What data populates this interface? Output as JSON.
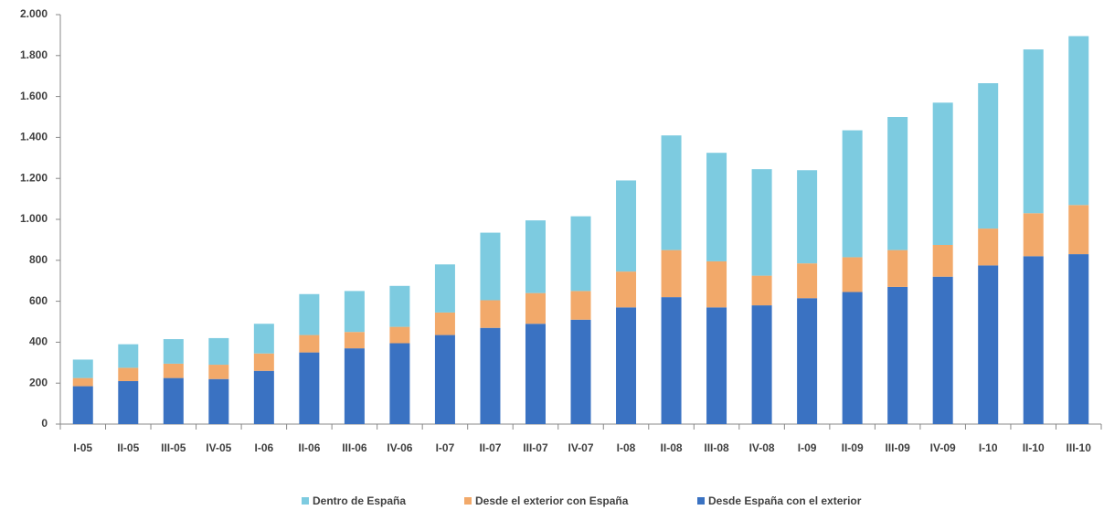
{
  "chart_data": {
    "type": "stacked_bar",
    "categories": [
      "I-05",
      "II-05",
      "III-05",
      "IV-05",
      "I-06",
      "II-06",
      "III-06",
      "IV-06",
      "I-07",
      "II-07",
      "III-07",
      "IV-07",
      "I-08",
      "II-08",
      "III-08",
      "IV-08",
      "I-09",
      "II-09",
      "III-09",
      "IV-09",
      "I-10",
      "II-10",
      "III-10"
    ],
    "series": [
      {
        "name": "Desde España con el exterior",
        "color": "#3a72c2",
        "values": [
          185,
          210,
          225,
          220,
          260,
          350,
          370,
          395,
          435,
          470,
          490,
          510,
          570,
          620,
          570,
          580,
          615,
          645,
          670,
          720,
          775,
          820,
          830
        ]
      },
      {
        "name": "Desde el exterior con España",
        "color": "#f2a96a",
        "values": [
          40,
          65,
          70,
          70,
          85,
          85,
          80,
          80,
          110,
          135,
          150,
          140,
          175,
          230,
          225,
          145,
          170,
          170,
          180,
          155,
          180,
          210,
          240
        ]
      },
      {
        "name": "Dentro de España",
        "color": "#7dcbe0",
        "values": [
          90,
          115,
          120,
          130,
          145,
          200,
          200,
          200,
          235,
          330,
          355,
          365,
          445,
          560,
          530,
          520,
          455,
          620,
          650,
          695,
          710,
          800,
          825
        ]
      }
    ],
    "ylim": [
      0,
      2000
    ],
    "yticks": [
      0,
      200,
      400,
      600,
      800,
      {
        "value": 1000,
        "label": "1.000"
      },
      {
        "value": 1200,
        "label": "1.200"
      },
      {
        "value": 1400,
        "label": "1.400"
      },
      {
        "value": 1600,
        "label": "1.600"
      },
      {
        "value": 1800,
        "label": "1.800"
      },
      {
        "value": 2000,
        "label": "2.000"
      }
    ],
    "grid": false,
    "legend": "bottom"
  }
}
